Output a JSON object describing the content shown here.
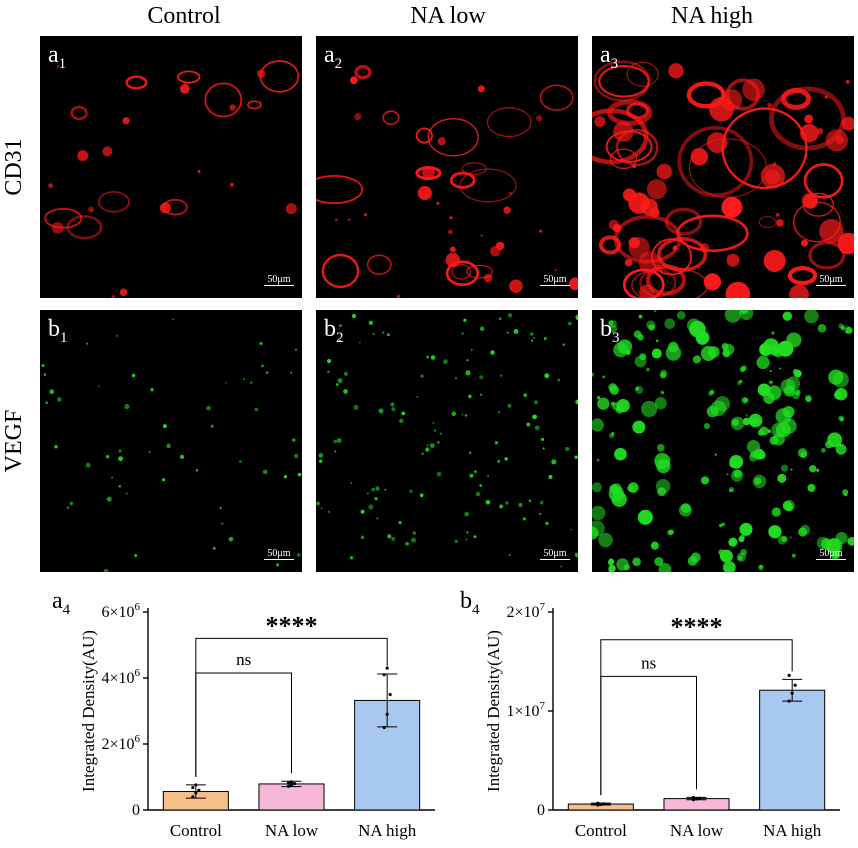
{
  "columns": [
    "Control",
    "NA low",
    "NA high"
  ],
  "rows": [
    "CD31",
    "VEGF"
  ],
  "panels": {
    "a1": {
      "letter": "a",
      "index": "1",
      "scale": "50μm"
    },
    "a2": {
      "letter": "a",
      "index": "2",
      "scale": "50μm"
    },
    "a3": {
      "letter": "a",
      "index": "3",
      "scale": "50μm"
    },
    "b1": {
      "letter": "b",
      "index": "1",
      "scale": "50μm"
    },
    "b2": {
      "letter": "b",
      "index": "2",
      "scale": "50μm"
    },
    "b3": {
      "letter": "b",
      "index": "3",
      "scale": "50μm"
    }
  },
  "colors": {
    "cd31": "#ff1a1a",
    "vegf": "#22dd22",
    "bar_control": "#f5c08a",
    "bar_na_low": "#f7b8d8",
    "bar_na_high": "#a8c8f0"
  },
  "chart_a4": {
    "letter": "a",
    "index": "4"
  },
  "chart_b4": {
    "letter": "b",
    "index": "4"
  },
  "chart_data": [
    {
      "type": "bar",
      "categories": [
        "Control",
        "NA low",
        "NA high"
      ],
      "values": [
        560000,
        790000,
        3320000
      ],
      "errors": [
        200000,
        80000,
        800000
      ],
      "points": [
        [
          400000,
          520000,
          600000,
          680000,
          760000
        ],
        [
          720000,
          760000,
          800000,
          820000,
          850000
        ],
        [
          2500000,
          2900000,
          3500000,
          4100000,
          4300000
        ]
      ],
      "ylabel": "Integrated Density(AU)",
      "ylim": [
        0,
        6000000
      ],
      "yticks": [
        0,
        2000000,
        4000000,
        6000000
      ],
      "ytick_labels": [
        "0",
        "2×10",
        "4×10",
        "6×10"
      ],
      "ytick_exps": [
        "",
        "6",
        "6",
        "6"
      ],
      "comparisons": [
        {
          "from": 0,
          "to": 1,
          "label": "ns",
          "height": 4150000
        },
        {
          "from": 0,
          "to": 2,
          "label": "****",
          "height": 5200000
        }
      ]
    },
    {
      "type": "bar",
      "categories": [
        "Control",
        "NA low",
        "NA high"
      ],
      "values": [
        600000,
        1150000,
        12100000
      ],
      "errors": [
        100000,
        120000,
        1100000
      ],
      "points": [
        [
          500000,
          560000,
          620000,
          680000
        ],
        [
          1050000,
          1120000,
          1180000,
          1250000
        ],
        [
          11000000,
          11800000,
          12600000,
          13600000
        ]
      ],
      "ylabel": "Integrated Density(AU)",
      "ylim": [
        0,
        20000000
      ],
      "yticks": [
        0,
        10000000,
        20000000
      ],
      "ytick_labels": [
        "0",
        "1×10",
        "2×10"
      ],
      "ytick_exps": [
        "",
        "7",
        "7"
      ],
      "comparisons": [
        {
          "from": 0,
          "to": 1,
          "label": "ns",
          "height": 13500000
        },
        {
          "from": 0,
          "to": 2,
          "label": "****",
          "height": 17200000
        }
      ]
    }
  ]
}
